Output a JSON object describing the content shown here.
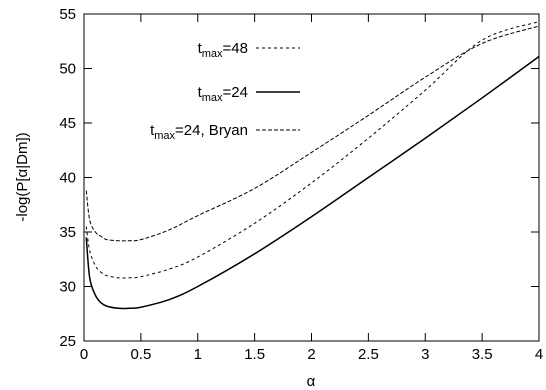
{
  "chart_data": {
    "type": "line",
    "title": "",
    "xlabel": "α",
    "ylabel": "-log(P[α|Dm])",
    "xlim": [
      0,
      4
    ],
    "ylim": [
      25,
      55
    ],
    "x_ticks": [
      "0",
      "0.5",
      "1",
      "1.5",
      "2",
      "2.5",
      "3",
      "3.5",
      "4"
    ],
    "y_ticks": [
      "25",
      "30",
      "35",
      "40",
      "45",
      "50",
      "55"
    ],
    "grid": false,
    "legend_position": "top-center",
    "series": [
      {
        "name": "t_max=48",
        "name_parts": {
          "base": "t",
          "sub": "max",
          "rest": "=48"
        },
        "style": "dotted",
        "x": [
          0.02,
          0.05,
          0.1,
          0.15,
          0.2,
          0.3,
          0.4,
          0.5,
          0.75,
          1.0,
          1.5,
          2.0,
          2.5,
          3.0,
          3.5,
          4.0
        ],
        "y": [
          35.5,
          33.3,
          31.9,
          31.3,
          31.0,
          30.8,
          30.8,
          30.9,
          31.6,
          32.7,
          35.8,
          39.5,
          43.6,
          48.0,
          52.6,
          54.3
        ]
      },
      {
        "name": "t_max=24",
        "name_parts": {
          "base": "t",
          "sub": "max",
          "rest": "=24"
        },
        "style": "solid",
        "x": [
          0.02,
          0.05,
          0.1,
          0.15,
          0.2,
          0.3,
          0.4,
          0.5,
          0.75,
          1.0,
          1.5,
          2.0,
          2.5,
          3.0,
          3.5,
          4.0
        ],
        "y": [
          34.5,
          30.8,
          29.2,
          28.5,
          28.2,
          28.0,
          28.0,
          28.1,
          28.8,
          30.0,
          33.0,
          36.4,
          40.0,
          43.6,
          47.3,
          51.1
        ]
      },
      {
        "name": "t_max=24, Bryan",
        "name_parts": {
          "base": "t",
          "sub": "max",
          "rest": "=24, Bryan"
        },
        "style": "dashed",
        "x": [
          0.02,
          0.05,
          0.1,
          0.15,
          0.2,
          0.3,
          0.4,
          0.5,
          0.75,
          1.0,
          1.5,
          2.0,
          2.5,
          3.0,
          3.5,
          4.0
        ],
        "y": [
          38.8,
          36.1,
          35.0,
          34.6,
          34.3,
          34.2,
          34.2,
          34.3,
          35.2,
          36.5,
          39.0,
          42.3,
          45.7,
          49.2,
          52.3,
          53.9
        ]
      }
    ]
  }
}
